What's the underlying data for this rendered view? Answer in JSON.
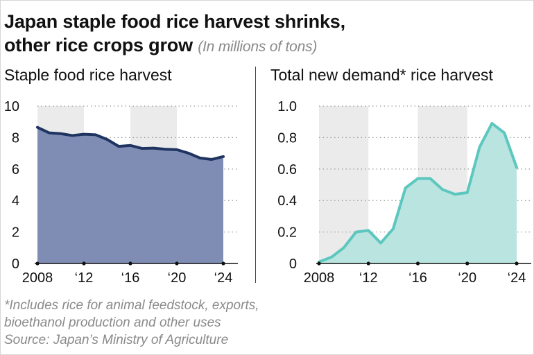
{
  "header": {
    "title_line1": "Japan staple food rice harvest shrinks,",
    "title_line2": "other rice crops grow",
    "unit": "(In millions of tons)"
  },
  "notes": {
    "line1": "*Includes rice for animal feedstock, exports,",
    "line2": "bioethanol production and other uses",
    "source": "Source: Japan’s Ministry of Agriculture"
  },
  "colors": {
    "staple_line": "#1f3460",
    "staple_fill": "#7f8db4",
    "demand_line": "#5cc7be",
    "demand_fill": "#b9e4df",
    "band": "#ebebeb",
    "grid": "#9a9a9a"
  },
  "chart_data": [
    {
      "type": "area",
      "title": "Staple food rice harvest",
      "xlabel": "",
      "ylabel": "",
      "x_ticks": [
        "2008",
        "‘12",
        "‘16",
        "‘20",
        "‘24"
      ],
      "y_ticks": [
        "0",
        "2",
        "4",
        "6",
        "8",
        "10"
      ],
      "xlim": [
        2008,
        2024
      ],
      "ylim": [
        0,
        10
      ],
      "shaded_periods": [
        [
          2008,
          2012
        ],
        [
          2016,
          2020
        ]
      ],
      "series": [
        {
          "x": [
            2008,
            2009,
            2010,
            2011,
            2012,
            2013,
            2014,
            2015,
            2016,
            2017,
            2018,
            2019,
            2020,
            2021,
            2022,
            2023,
            2024
          ],
          "values": [
            8.65,
            8.3,
            8.25,
            8.13,
            8.21,
            8.18,
            7.88,
            7.44,
            7.5,
            7.31,
            7.33,
            7.26,
            7.23,
            7.01,
            6.7,
            6.61,
            6.79
          ]
        }
      ]
    },
    {
      "type": "area",
      "title": "Total new demand* rice harvest",
      "xlabel": "",
      "ylabel": "",
      "x_ticks": [
        "2008",
        "‘12",
        "‘16",
        "‘20",
        "‘24"
      ],
      "y_ticks": [
        "0",
        "0.2",
        "0.4",
        "0.6",
        "0.8",
        "1.0"
      ],
      "xlim": [
        2008,
        2024
      ],
      "ylim": [
        0,
        1.0
      ],
      "shaded_periods": [
        [
          2008,
          2012
        ],
        [
          2016,
          2020
        ]
      ],
      "series": [
        {
          "x": [
            2008,
            2009,
            2010,
            2011,
            2012,
            2013,
            2014,
            2015,
            2016,
            2017,
            2018,
            2019,
            2020,
            2021,
            2022,
            2023,
            2024
          ],
          "values": [
            0.01,
            0.04,
            0.1,
            0.2,
            0.21,
            0.13,
            0.22,
            0.48,
            0.54,
            0.54,
            0.47,
            0.44,
            0.45,
            0.74,
            0.89,
            0.83,
            0.61
          ]
        }
      ]
    }
  ]
}
